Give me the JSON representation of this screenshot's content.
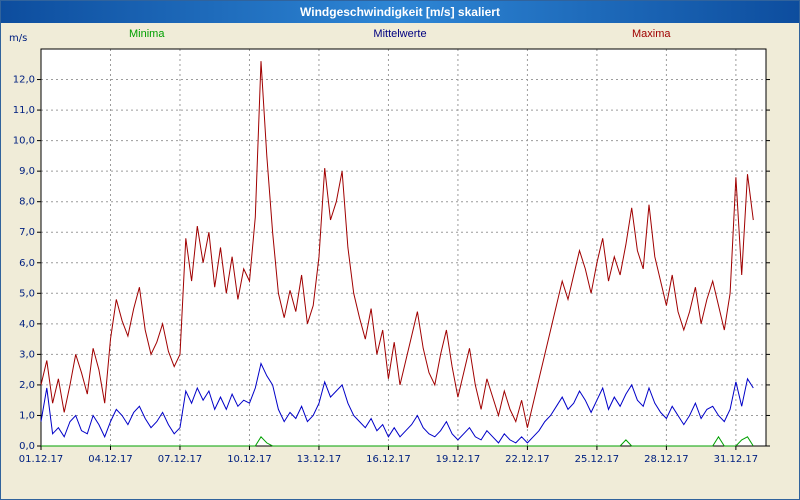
{
  "window": {
    "title": "Windgeschwindigkeit [m/s] skaliert"
  },
  "legend": {
    "minima": "Minima",
    "mittelwerte": "Mittelwerte",
    "maxima": "Maxima"
  },
  "colors": {
    "title_bar": "#0d4d9e",
    "background": "#f0ecd8",
    "plot_background": "#ffffff",
    "grid": "#9c9c9c",
    "axis": "#000000",
    "axis_label": "#002080",
    "minima": "#00a000",
    "mittelwerte": "#0000c8",
    "maxima": "#a00000"
  },
  "chart_data": {
    "type": "line",
    "title": "Windgeschwindigkeit [m/s] skaliert",
    "y_unit": "m/s",
    "ylabel": "m/s",
    "xlabel": "",
    "ylim": [
      0,
      13
    ],
    "xlim": [
      1,
      32.3
    ],
    "grid": true,
    "legend_position": "top",
    "x_start": 1,
    "x_step": 0.25,
    "y_ticks": [
      {
        "v": 0,
        "label": "0,0"
      },
      {
        "v": 1,
        "label": "1,0"
      },
      {
        "v": 2,
        "label": "2,0"
      },
      {
        "v": 3,
        "label": "3,0"
      },
      {
        "v": 4,
        "label": "4,0"
      },
      {
        "v": 5,
        "label": "5,0"
      },
      {
        "v": 6,
        "label": "6,0"
      },
      {
        "v": 7,
        "label": "7,0"
      },
      {
        "v": 8,
        "label": "8,0"
      },
      {
        "v": 9,
        "label": "9,0"
      },
      {
        "v": 10,
        "label": "10,0"
      },
      {
        "v": 11,
        "label": "11,0"
      },
      {
        "v": 12,
        "label": "12,0"
      }
    ],
    "x_ticks": [
      {
        "day": 1,
        "label": "01.12.17"
      },
      {
        "day": 4,
        "label": "04.12.17"
      },
      {
        "day": 7,
        "label": "07.12.17"
      },
      {
        "day": 10,
        "label": "10.12.17"
      },
      {
        "day": 13,
        "label": "13.12.17"
      },
      {
        "day": 16,
        "label": "16.12.17"
      },
      {
        "day": 19,
        "label": "19.12.17"
      },
      {
        "day": 22,
        "label": "22.12.17"
      },
      {
        "day": 25,
        "label": "25.12.17"
      },
      {
        "day": 28,
        "label": "28.12.17"
      },
      {
        "day": 31,
        "label": "31.12.17"
      }
    ],
    "series": [
      {
        "name": "Minima",
        "color": "#00a000",
        "values": [
          0,
          0,
          0,
          0,
          0,
          0,
          0,
          0,
          0,
          0,
          0,
          0,
          0,
          0,
          0,
          0,
          0,
          0,
          0,
          0,
          0,
          0,
          0,
          0,
          0,
          0,
          0,
          0,
          0,
          0,
          0,
          0,
          0,
          0,
          0,
          0,
          0,
          0,
          0.3,
          0.1,
          0,
          0,
          0,
          0,
          0,
          0,
          0,
          0,
          0,
          0,
          0,
          0,
          0,
          0,
          0,
          0,
          0,
          0,
          0,
          0,
          0,
          0,
          0,
          0,
          0,
          0,
          0,
          0,
          0,
          0,
          0,
          0,
          0,
          0,
          0,
          0,
          0,
          0,
          0,
          0,
          0,
          0,
          0,
          0,
          0,
          0,
          0,
          0,
          0,
          0,
          0,
          0,
          0,
          0,
          0,
          0,
          0,
          0,
          0,
          0,
          0,
          0.2,
          0,
          0,
          0,
          0,
          0,
          0,
          0,
          0,
          0,
          0,
          0,
          0,
          0,
          0,
          0,
          0.3,
          0,
          0,
          0,
          0.2,
          0.3,
          0
        ]
      },
      {
        "name": "Mittelwerte",
        "color": "#0000c8",
        "values": [
          0.8,
          1.9,
          0.4,
          0.6,
          0.3,
          0.8,
          1.0,
          0.5,
          0.4,
          1.0,
          0.7,
          0.3,
          0.8,
          1.2,
          1.0,
          0.7,
          1.1,
          1.3,
          0.9,
          0.6,
          0.8,
          1.1,
          0.7,
          0.4,
          0.6,
          1.8,
          1.4,
          1.9,
          1.5,
          1.8,
          1.2,
          1.6,
          1.2,
          1.7,
          1.3,
          1.5,
          1.4,
          1.9,
          2.7,
          2.3,
          2.0,
          1.2,
          0.8,
          1.1,
          0.9,
          1.3,
          0.8,
          1.0,
          1.4,
          2.1,
          1.6,
          1.8,
          2.0,
          1.4,
          1.0,
          0.8,
          0.6,
          0.9,
          0.5,
          0.7,
          0.3,
          0.6,
          0.3,
          0.5,
          0.7,
          1.0,
          0.6,
          0.4,
          0.3,
          0.5,
          0.8,
          0.4,
          0.2,
          0.4,
          0.6,
          0.3,
          0.2,
          0.5,
          0.3,
          0.1,
          0.4,
          0.2,
          0.1,
          0.3,
          0.1,
          0.3,
          0.5,
          0.8,
          1.0,
          1.3,
          1.6,
          1.2,
          1.4,
          1.8,
          1.5,
          1.1,
          1.5,
          1.9,
          1.2,
          1.6,
          1.3,
          1.7,
          2.0,
          1.5,
          1.3,
          1.9,
          1.4,
          1.1,
          0.9,
          1.3,
          1.0,
          0.7,
          1.0,
          1.4,
          0.9,
          1.2,
          1.3,
          1.0,
          0.8,
          1.2,
          2.1,
          1.3,
          2.2,
          1.9
        ]
      },
      {
        "name": "Maxima",
        "color": "#a00000",
        "values": [
          2.0,
          2.8,
          1.4,
          2.2,
          1.1,
          2.0,
          3.0,
          2.4,
          1.7,
          3.2,
          2.5,
          1.4,
          3.5,
          4.8,
          4.1,
          3.6,
          4.5,
          5.2,
          3.8,
          3.0,
          3.4,
          4.0,
          3.1,
          2.6,
          3.0,
          6.8,
          5.4,
          7.2,
          6.0,
          7.0,
          5.2,
          6.5,
          5.0,
          6.2,
          4.8,
          5.8,
          5.4,
          7.5,
          12.6,
          9.5,
          7.0,
          5.0,
          4.2,
          5.1,
          4.4,
          5.6,
          4.0,
          4.6,
          6.2,
          9.1,
          7.4,
          8.0,
          9.0,
          6.5,
          5.0,
          4.2,
          3.5,
          4.5,
          3.0,
          3.8,
          2.2,
          3.4,
          2.0,
          2.8,
          3.6,
          4.4,
          3.2,
          2.4,
          2.0,
          3.0,
          3.8,
          2.6,
          1.6,
          2.4,
          3.2,
          2.0,
          1.2,
          2.2,
          1.6,
          1.0,
          1.8,
          1.2,
          0.8,
          1.5,
          0.6,
          1.4,
          2.2,
          3.0,
          3.8,
          4.6,
          5.4,
          4.8,
          5.6,
          6.4,
          5.8,
          5.0,
          6.0,
          6.8,
          5.4,
          6.2,
          5.6,
          6.6,
          7.8,
          6.4,
          5.8,
          7.9,
          6.2,
          5.4,
          4.6,
          5.6,
          4.4,
          3.8,
          4.4,
          5.2,
          4.0,
          4.8,
          5.4,
          4.6,
          3.8,
          5.0,
          8.8,
          5.6,
          8.9,
          7.4
        ]
      }
    ]
  }
}
